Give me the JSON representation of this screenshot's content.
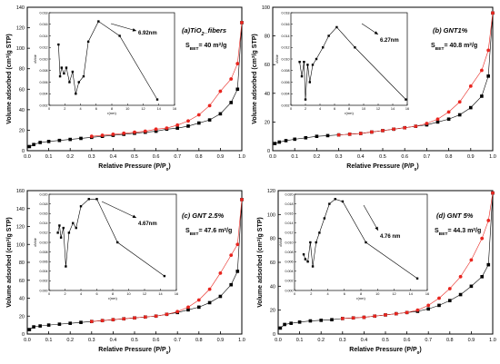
{
  "chart_data": [
    {
      "type": "scatter",
      "panel_label": "(a)TiO",
      "panel_label_sub": "2",
      "panel_label_tail": "_fibers",
      "sbet_main": "S",
      "sbet_sub": "BET",
      "sbet_value": "= 40 m",
      "sbet_sup": "2",
      "sbet_unit": "/g",
      "xlabel": "Relative Pressure (P/P",
      "xlabel_sub": "0",
      "xlabel_tail": ")",
      "ylabel_pre": "Volume adsorbed (cm",
      "ylabel_sup": "3",
      "ylabel_post": "/g STP)",
      "xlim": [
        0,
        1.0
      ],
      "ylim": [
        0,
        140
      ],
      "xticks": [
        "0.0",
        "0.1",
        "0.2",
        "0.3",
        "0.4",
        "0.5",
        "0.6",
        "0.7",
        "0.8",
        "0.9",
        "1.0"
      ],
      "yticks": [
        "0",
        "20",
        "40",
        "60",
        "80",
        "100",
        "120",
        "140"
      ],
      "series": [
        {
          "color": "#000000",
          "x": [
            0.01,
            0.03,
            0.06,
            0.1,
            0.15,
            0.2,
            0.25,
            0.3,
            0.35,
            0.4,
            0.45,
            0.5,
            0.55,
            0.6,
            0.65,
            0.7,
            0.75,
            0.8,
            0.85,
            0.9,
            0.95,
            0.98,
            1.0
          ],
          "y": [
            4,
            6,
            8,
            9,
            10,
            11,
            12,
            13,
            14,
            15,
            16,
            17,
            18,
            19,
            21,
            22,
            24,
            27,
            30,
            36,
            47,
            60,
            125
          ]
        },
        {
          "color": "#e8251f",
          "x": [
            0.3,
            0.35,
            0.4,
            0.45,
            0.5,
            0.55,
            0.6,
            0.65,
            0.7,
            0.75,
            0.8,
            0.85,
            0.9,
            0.95,
            0.98,
            1.0
          ],
          "y": [
            14,
            15,
            16,
            17,
            18,
            19,
            21,
            22,
            25,
            29,
            35,
            44,
            58,
            70,
            85,
            125
          ]
        }
      ],
      "inset": {
        "xlabel": "r(nm)",
        "ylabel": "dV/dr",
        "xlim": [
          0,
          16
        ],
        "ylim": [
          0.002,
          0.018
        ],
        "xticks": [
          "0",
          "2",
          "4",
          "6",
          "8",
          "10",
          "12",
          "14",
          "16"
        ],
        "yticks": [
          "0.002",
          "0.004",
          "0.006",
          "0.008",
          "0.010",
          "0.012",
          "0.014",
          "0.016",
          "0.018"
        ],
        "x": [
          1.2,
          1.4,
          1.6,
          1.9,
          2.2,
          2.6,
          3.0,
          3.4,
          3.8,
          4.4,
          5.0,
          6.3,
          9.0,
          13.8
        ],
        "y": [
          0.0125,
          0.007,
          0.0085,
          0.0075,
          0.0085,
          0.006,
          0.0078,
          0.004,
          0.006,
          0.007,
          0.013,
          0.0165,
          0.014,
          0.003
        ],
        "annotation": "6.92nm"
      }
    },
    {
      "type": "scatter",
      "panel_label": "(b) GNT1%",
      "panel_label_sub": "",
      "panel_label_tail": "",
      "sbet_main": "S",
      "sbet_sub": "BET",
      "sbet_value": "= 40.8 m",
      "sbet_sup": "2",
      "sbet_unit": "/g",
      "xlabel": "Relative Pressure (P/P",
      "xlabel_sub": "0",
      "xlabel_tail": ")",
      "ylabel_pre": "Volume adsorbed (cm",
      "ylabel_sup": "3",
      "ylabel_post": "/g STP)",
      "xlim": [
        0,
        1.0
      ],
      "ylim": [
        0,
        100
      ],
      "xticks": [
        "0.0",
        "0.1",
        "0.2",
        "0.3",
        "0.4",
        "0.5",
        "0.6",
        "0.7",
        "0.8",
        "0.9",
        "1.0"
      ],
      "yticks": [
        "0",
        "20",
        "40",
        "60",
        "80",
        "100"
      ],
      "series": [
        {
          "color": "#000000",
          "x": [
            0.01,
            0.03,
            0.06,
            0.1,
            0.15,
            0.2,
            0.25,
            0.3,
            0.35,
            0.4,
            0.45,
            0.5,
            0.55,
            0.6,
            0.65,
            0.7,
            0.75,
            0.8,
            0.85,
            0.9,
            0.95,
            0.98,
            1.0
          ],
          "y": [
            5,
            6,
            7,
            8,
            9,
            10,
            10.5,
            11,
            11.5,
            12,
            13,
            14,
            15,
            16,
            17,
            18,
            20,
            22,
            25,
            30,
            38,
            52,
            96
          ]
        },
        {
          "color": "#e8251f",
          "x": [
            0.3,
            0.35,
            0.4,
            0.45,
            0.5,
            0.55,
            0.6,
            0.65,
            0.7,
            0.75,
            0.8,
            0.85,
            0.9,
            0.95,
            0.98,
            1.0
          ],
          "y": [
            11,
            11.5,
            12,
            13,
            14,
            15,
            16,
            17,
            19,
            22,
            27,
            34,
            45,
            56,
            70,
            96
          ]
        }
      ],
      "inset": {
        "xlabel": "r(nm)",
        "ylabel": "dV/dr",
        "xlim": [
          0,
          16
        ],
        "ylim": [
          0.002,
          0.018
        ],
        "xticks": [
          "0",
          "2",
          "4",
          "6",
          "8",
          "10",
          "12",
          "14",
          "16"
        ],
        "yticks": [
          "0.002",
          "0.004",
          "0.006",
          "0.008",
          "0.010",
          "0.012",
          "0.014",
          "0.016",
          "0.018"
        ],
        "x": [
          1.2,
          1.5,
          1.8,
          2.0,
          2.3,
          2.6,
          3.0,
          3.5,
          4.4,
          5.2,
          6.3,
          8.8,
          15.8
        ],
        "y": [
          0.0095,
          0.007,
          0.0095,
          0.003,
          0.009,
          0.006,
          0.009,
          0.01,
          0.012,
          0.014,
          0.0155,
          0.012,
          0.003
        ],
        "annotation": "6.27nm"
      }
    },
    {
      "type": "scatter",
      "panel_label": "(c) GNT 2.5%",
      "panel_label_sub": "",
      "panel_label_tail": "",
      "sbet_main": "S",
      "sbet_sub": "BET",
      "sbet_value": "= 47.6 m",
      "sbet_sup": "2",
      "sbet_unit": "/g",
      "xlabel": "Relative Pressure (P/P",
      "xlabel_sub": "0",
      "xlabel_tail": ")",
      "ylabel_pre": "Volume adsorbed (cm",
      "ylabel_sup": "3",
      "ylabel_post": "/g STP)",
      "xlim": [
        0,
        1.0
      ],
      "ylim": [
        0,
        160
      ],
      "xticks": [
        "0.0",
        "0.1",
        "0.2",
        "0.3",
        "0.4",
        "0.5",
        "0.6",
        "0.7",
        "0.8",
        "0.9",
        "1.0"
      ],
      "yticks": [
        "0",
        "20",
        "40",
        "60",
        "80",
        "100",
        "120",
        "140",
        "160"
      ],
      "series": [
        {
          "color": "#000000",
          "x": [
            0.01,
            0.03,
            0.06,
            0.1,
            0.15,
            0.2,
            0.25,
            0.3,
            0.35,
            0.4,
            0.45,
            0.5,
            0.55,
            0.6,
            0.65,
            0.7,
            0.75,
            0.8,
            0.85,
            0.9,
            0.95,
            0.98,
            1.0
          ],
          "y": [
            5,
            8,
            9,
            10,
            11,
            12,
            13,
            14,
            15,
            16,
            17,
            18,
            19,
            20,
            22,
            24,
            27,
            30,
            35,
            42,
            55,
            70,
            150
          ]
        },
        {
          "color": "#e8251f",
          "x": [
            0.3,
            0.35,
            0.4,
            0.45,
            0.5,
            0.55,
            0.6,
            0.65,
            0.7,
            0.75,
            0.8,
            0.85,
            0.9,
            0.95,
            0.98,
            1.0
          ],
          "y": [
            14,
            15,
            16,
            17,
            18,
            19,
            20,
            22,
            25,
            30,
            38,
            50,
            68,
            88,
            100,
            150
          ]
        }
      ],
      "inset": {
        "xlabel": "r(nm)",
        "ylabel": "dV/dr",
        "xlim": [
          0,
          16
        ],
        "ylim": [
          0.0,
          0.02
        ],
        "xticks": [
          "0",
          "2",
          "4",
          "6",
          "8",
          "10",
          "12",
          "14",
          "16"
        ],
        "yticks": [
          "0.000",
          "0.002",
          "0.004",
          "0.006",
          "0.008",
          "0.010",
          "0.012",
          "0.014",
          "0.016",
          "0.018",
          "0.020"
        ],
        "x": [
          1.1,
          1.3,
          1.5,
          1.8,
          2.1,
          2.5,
          3.0,
          3.4,
          4.0,
          5.0,
          6.0,
          8.6,
          14.5
        ],
        "y": [
          0.012,
          0.0135,
          0.011,
          0.013,
          0.005,
          0.012,
          0.014,
          0.013,
          0.0175,
          0.019,
          0.019,
          0.01,
          0.003
        ],
        "annotation": "4.67nm"
      }
    },
    {
      "type": "scatter",
      "panel_label": "(d) GNT 5%",
      "panel_label_sub": "",
      "panel_label_tail": "",
      "sbet_main": "S",
      "sbet_sub": "BET",
      "sbet_value": "= 44.3 m",
      "sbet_sup": "2",
      "sbet_unit": "/g",
      "xlabel": "Relative Pressure (P/P",
      "xlabel_sub": "0",
      "xlabel_tail": ")",
      "ylabel_pre": "Volume adsorbed (cm",
      "ylabel_sup": "3",
      "ylabel_post": "/g STP)",
      "xlim": [
        0,
        1.0
      ],
      "ylim": [
        0,
        120
      ],
      "xticks": [
        "0.0",
        "0.1",
        "0.2",
        "0.3",
        "0.4",
        "0.5",
        "0.6",
        "0.7",
        "0.8",
        "0.9",
        "1.0"
      ],
      "yticks": [
        "0",
        "20",
        "40",
        "60",
        "80",
        "100",
        "120"
      ],
      "series": [
        {
          "color": "#000000",
          "x": [
            0.01,
            0.03,
            0.06,
            0.1,
            0.15,
            0.2,
            0.25,
            0.3,
            0.35,
            0.4,
            0.45,
            0.5,
            0.55,
            0.6,
            0.65,
            0.7,
            0.75,
            0.8,
            0.85,
            0.9,
            0.95,
            0.98,
            1.0
          ],
          "y": [
            5,
            8,
            9,
            10,
            11,
            11.5,
            12,
            13,
            13.5,
            14,
            15,
            16,
            17,
            18,
            19,
            21,
            24,
            28,
            33,
            40,
            48,
            58,
            118
          ]
        },
        {
          "color": "#e8251f",
          "x": [
            0.3,
            0.35,
            0.4,
            0.45,
            0.5,
            0.55,
            0.6,
            0.65,
            0.7,
            0.75,
            0.8,
            0.85,
            0.9,
            0.95,
            0.98,
            1.0
          ],
          "y": [
            13,
            13.5,
            14,
            15,
            16,
            17,
            18,
            20,
            24,
            30,
            38,
            48,
            62,
            80,
            95,
            118
          ]
        }
      ],
      "inset": {
        "xlabel": "r(nm)",
        "ylabel": "dV/dr",
        "xlim": [
          0,
          16
        ],
        "ylim": [
          0.0,
          0.02
        ],
        "xticks": [
          "0",
          "2",
          "4",
          "6",
          "8",
          "10",
          "12",
          "14",
          "16"
        ],
        "yticks": [
          "0.000",
          "0.002",
          "0.004",
          "0.006",
          "0.008",
          "0.010",
          "0.012",
          "0.014",
          "0.016",
          "0.018",
          "0.020"
        ],
        "x": [
          1.1,
          1.3,
          1.6,
          1.9,
          2.2,
          2.6,
          3.0,
          3.6,
          4.2,
          4.9,
          5.8,
          8.6,
          14.8
        ],
        "y": [
          0.0075,
          0.0065,
          0.006,
          0.01,
          0.005,
          0.01,
          0.012,
          0.015,
          0.018,
          0.019,
          0.0185,
          0.01,
          0.0025
        ],
        "annotation": "4.76 nm"
      }
    }
  ]
}
